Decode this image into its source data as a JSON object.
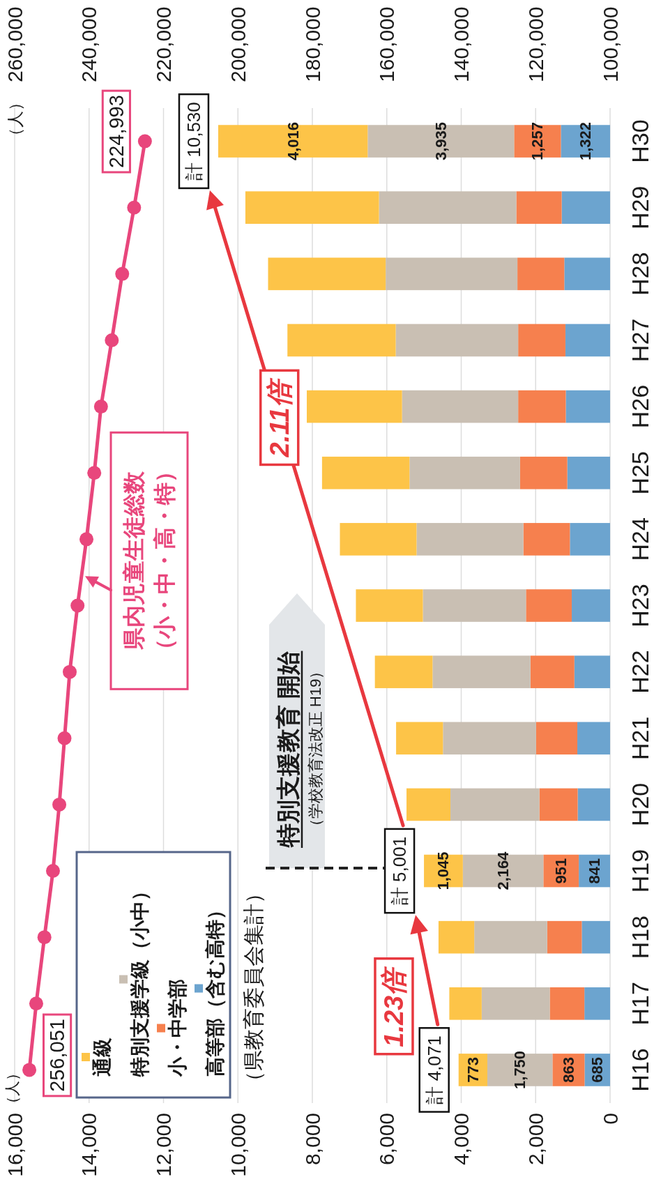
{
  "chart_data": {
    "type": "bar",
    "stacked": true,
    "orientation": "horizontal",
    "categories": [
      "H30",
      "H29",
      "H28",
      "H27",
      "H26",
      "H25",
      "H24",
      "H23",
      "H22",
      "H21",
      "H20",
      "H19",
      "H18",
      "H17",
      "H16"
    ],
    "series": [
      {
        "name": "高等部（含む高特）",
        "color": "#6ca4cf",
        "values": [
          1322,
          1300,
          1230,
          1200,
          1190,
          1150,
          1080,
          1030,
          960,
          880,
          870,
          841,
          760,
          690,
          685
        ],
        "value_labels": [
          "1,322",
          null,
          null,
          null,
          null,
          null,
          null,
          null,
          null,
          null,
          null,
          "841",
          null,
          null,
          "685"
        ]
      },
      {
        "name": "小・中学部",
        "color": "#f6804e",
        "values": [
          1257,
          1220,
          1260,
          1270,
          1280,
          1270,
          1250,
          1230,
          1180,
          1110,
          1030,
          951,
          930,
          930,
          863
        ],
        "value_labels": [
          "1,257",
          null,
          null,
          null,
          null,
          null,
          null,
          null,
          null,
          null,
          null,
          "951",
          null,
          null,
          "863"
        ]
      },
      {
        "name": "特別支援学級（小中）",
        "color": "#c9bfb3",
        "values": [
          3935,
          3690,
          3540,
          3290,
          3120,
          2970,
          2870,
          2770,
          2630,
          2500,
          2390,
          2164,
          1960,
          1830,
          1750
        ],
        "value_labels": [
          "3,935",
          null,
          null,
          null,
          null,
          null,
          null,
          null,
          null,
          null,
          null,
          "2,164",
          null,
          null,
          "1,750"
        ]
      },
      {
        "name": "通級",
        "color": "#fdc448",
        "values": [
          4016,
          3590,
          3160,
          2910,
          2560,
          2350,
          2060,
          1800,
          1550,
          1260,
          1180,
          1045,
          960,
          870,
          773
        ],
        "value_labels": [
          "4,016",
          null,
          null,
          null,
          null,
          null,
          null,
          null,
          null,
          null,
          null,
          "1,045",
          null,
          null,
          "773"
        ]
      },
      {
        "name": "県内児童生徒総数（小・中・高・特）",
        "type": "line",
        "axis": "x2",
        "color": "#e8467c",
        "marker": "circle",
        "values": [
          224993,
          227900,
          231100,
          233900,
          236800,
          238600,
          240700,
          243100,
          245200,
          246600,
          248000,
          249700,
          252000,
          254200,
          256051
        ],
        "value_labels": [
          "224,993",
          null,
          null,
          null,
          null,
          null,
          null,
          null,
          null,
          null,
          null,
          null,
          null,
          null,
          "256,051"
        ]
      }
    ],
    "xlim": [
      16000,
      0
    ],
    "xticks": [
      {
        "value": 16000,
        "label": "16,000"
      },
      {
        "value": 14000,
        "label": "14,000"
      },
      {
        "value": 12000,
        "label": "12,000"
      },
      {
        "value": 10000,
        "label": "10,000"
      },
      {
        "value": 8000,
        "label": "8,000"
      },
      {
        "value": 6000,
        "label": "6,000"
      },
      {
        "value": 4000,
        "label": "4,000"
      },
      {
        "value": 2000,
        "label": "2,000"
      },
      0
    ],
    "x2lim": [
      260000,
      100000
    ],
    "x2ticks": [
      {
        "value": 260000,
        "label": "260,000"
      },
      {
        "value": 240000,
        "label": "240,000"
      },
      {
        "value": 220000,
        "label": "220,000"
      },
      {
        "value": 200000,
        "label": "200,000"
      },
      {
        "value": 180000,
        "label": "180,000"
      },
      {
        "value": 160000,
        "label": "160,000"
      },
      {
        "value": 140000,
        "label": "140,000"
      },
      {
        "value": 120000,
        "label": "120,000"
      },
      {
        "value": 100000,
        "label": "100,000"
      }
    ],
    "x2label": "（人）",
    "grid": "x",
    "legend": "bottom left",
    "totals": [
      "計 10,530",
      null,
      null,
      null,
      null,
      null,
      null,
      null,
      null,
      null,
      null,
      "計 5,001",
      null,
      null,
      "計 4,071"
    ],
    "annotations": [
      "1.23倍",
      "2.11倍",
      "特別支援教育 開始",
      "（学校教育法改正 H19）",
      "（県教育委員会集計）",
      "（人）"
    ]
  }
}
